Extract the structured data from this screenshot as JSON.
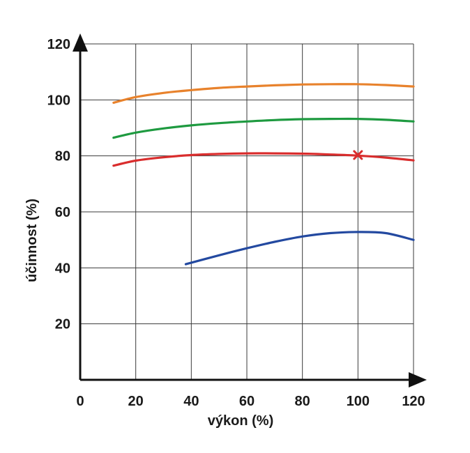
{
  "chart_data": {
    "type": "line",
    "xlabel": "výkon (%)",
    "ylabel": "účinnost (%)",
    "xlim": [
      0,
      120
    ],
    "ylim": [
      0,
      120
    ],
    "x_ticks": [
      "0",
      "20",
      "40",
      "60",
      "80",
      "100",
      "120"
    ],
    "y_ticks": [
      "20",
      "40",
      "60",
      "80",
      "100",
      "120"
    ],
    "grid": true,
    "series": [
      {
        "color": "#e8822c",
        "x": [
          12,
          20,
          30,
          40,
          50,
          60,
          70,
          80,
          90,
          100,
          110,
          120
        ],
        "y": [
          99,
          101,
          102.5,
          103.5,
          104.3,
          104.8,
          105.2,
          105.5,
          105.6,
          105.6,
          105.3,
          104.8
        ]
      },
      {
        "color": "#1e9a40",
        "x": [
          12,
          20,
          30,
          40,
          50,
          60,
          70,
          80,
          90,
          100,
          110,
          120
        ],
        "y": [
          86.5,
          88.3,
          89.8,
          90.9,
          91.7,
          92.3,
          92.8,
          93.1,
          93.2,
          93.2,
          92.9,
          92.3
        ]
      },
      {
        "color": "#d92d2d",
        "x": [
          12,
          20,
          30,
          40,
          50,
          60,
          70,
          80,
          90,
          100,
          110,
          120
        ],
        "y": [
          76.5,
          78.3,
          79.5,
          80.3,
          80.7,
          80.9,
          80.9,
          80.8,
          80.5,
          80.1,
          79.4,
          78.4
        ]
      },
      {
        "color": "#2349a0",
        "x": [
          38,
          50,
          60,
          70,
          80,
          90,
          100,
          110,
          120
        ],
        "y": [
          41.3,
          44.5,
          47,
          49.3,
          51.2,
          52.4,
          52.8,
          52.4,
          50
        ]
      }
    ],
    "markers": [
      {
        "symbol": "x",
        "color": "#d92d2d",
        "x": 100,
        "y": 80.3
      }
    ]
  }
}
